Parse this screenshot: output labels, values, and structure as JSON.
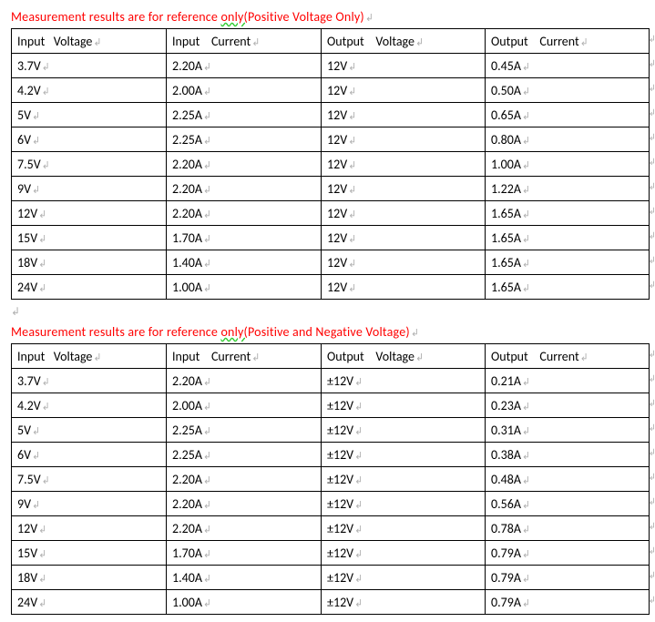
{
  "mark": "↲",
  "table1": {
    "title_prefix": "Measurement results are for reference ",
    "title_under": "only(",
    "title_suffix": "Positive Voltage Only)",
    "columns": [
      "Input   Voltage",
      "Input    Current",
      "Output    Voltage",
      "Output    Current"
    ],
    "rows": [
      [
        "3.7V",
        "2.20A",
        "12V",
        "0.45A"
      ],
      [
        "4.2V",
        "2.00A",
        "12V",
        "0.50A"
      ],
      [
        "5V",
        "2.25A",
        "12V",
        "0.65A"
      ],
      [
        "6V",
        "2.25A",
        "12V",
        "0.80A"
      ],
      [
        "7.5V",
        "2.20A",
        "12V",
        "1.00A"
      ],
      [
        "9V",
        "2.20A",
        "12V",
        "1.22A"
      ],
      [
        "12V",
        "2.20A",
        "12V",
        "1.65A"
      ],
      [
        "15V",
        "1.70A",
        "12V",
        "1.65A"
      ],
      [
        "18V",
        "1.40A",
        "12V",
        "1.65A"
      ],
      [
        "24V",
        "1.00A",
        "12V",
        "1.65A"
      ]
    ]
  },
  "table2": {
    "title_prefix": "Measurement results are for reference ",
    "title_under": "only(",
    "title_suffix": "Positive and Negative Voltage)",
    "columns": [
      "Input   Voltage",
      "Input    Current",
      "Output    Voltage",
      "Output    Current"
    ],
    "rows": [
      [
        "3.7V",
        "2.20A",
        "±12V",
        "0.21A"
      ],
      [
        "4.2V",
        "2.00A",
        "±12V",
        "0.23A"
      ],
      [
        "5V",
        "2.25A",
        "±12V",
        "0.31A"
      ],
      [
        "6V",
        "2.25A",
        "±12V",
        "0.38A"
      ],
      [
        "7.5V",
        "2.20A",
        "±12V",
        "0.48A"
      ],
      [
        "9V",
        "2.20A",
        "±12V",
        "0.56A"
      ],
      [
        "12V",
        "2.20A",
        "±12V",
        "0.78A"
      ],
      [
        "15V",
        "1.70A",
        "±12V",
        "0.79A"
      ],
      [
        "18V",
        "1.40A",
        "±12V",
        "0.79A"
      ],
      [
        "24V",
        "1.00A",
        "±12V",
        "0.79A"
      ]
    ]
  }
}
